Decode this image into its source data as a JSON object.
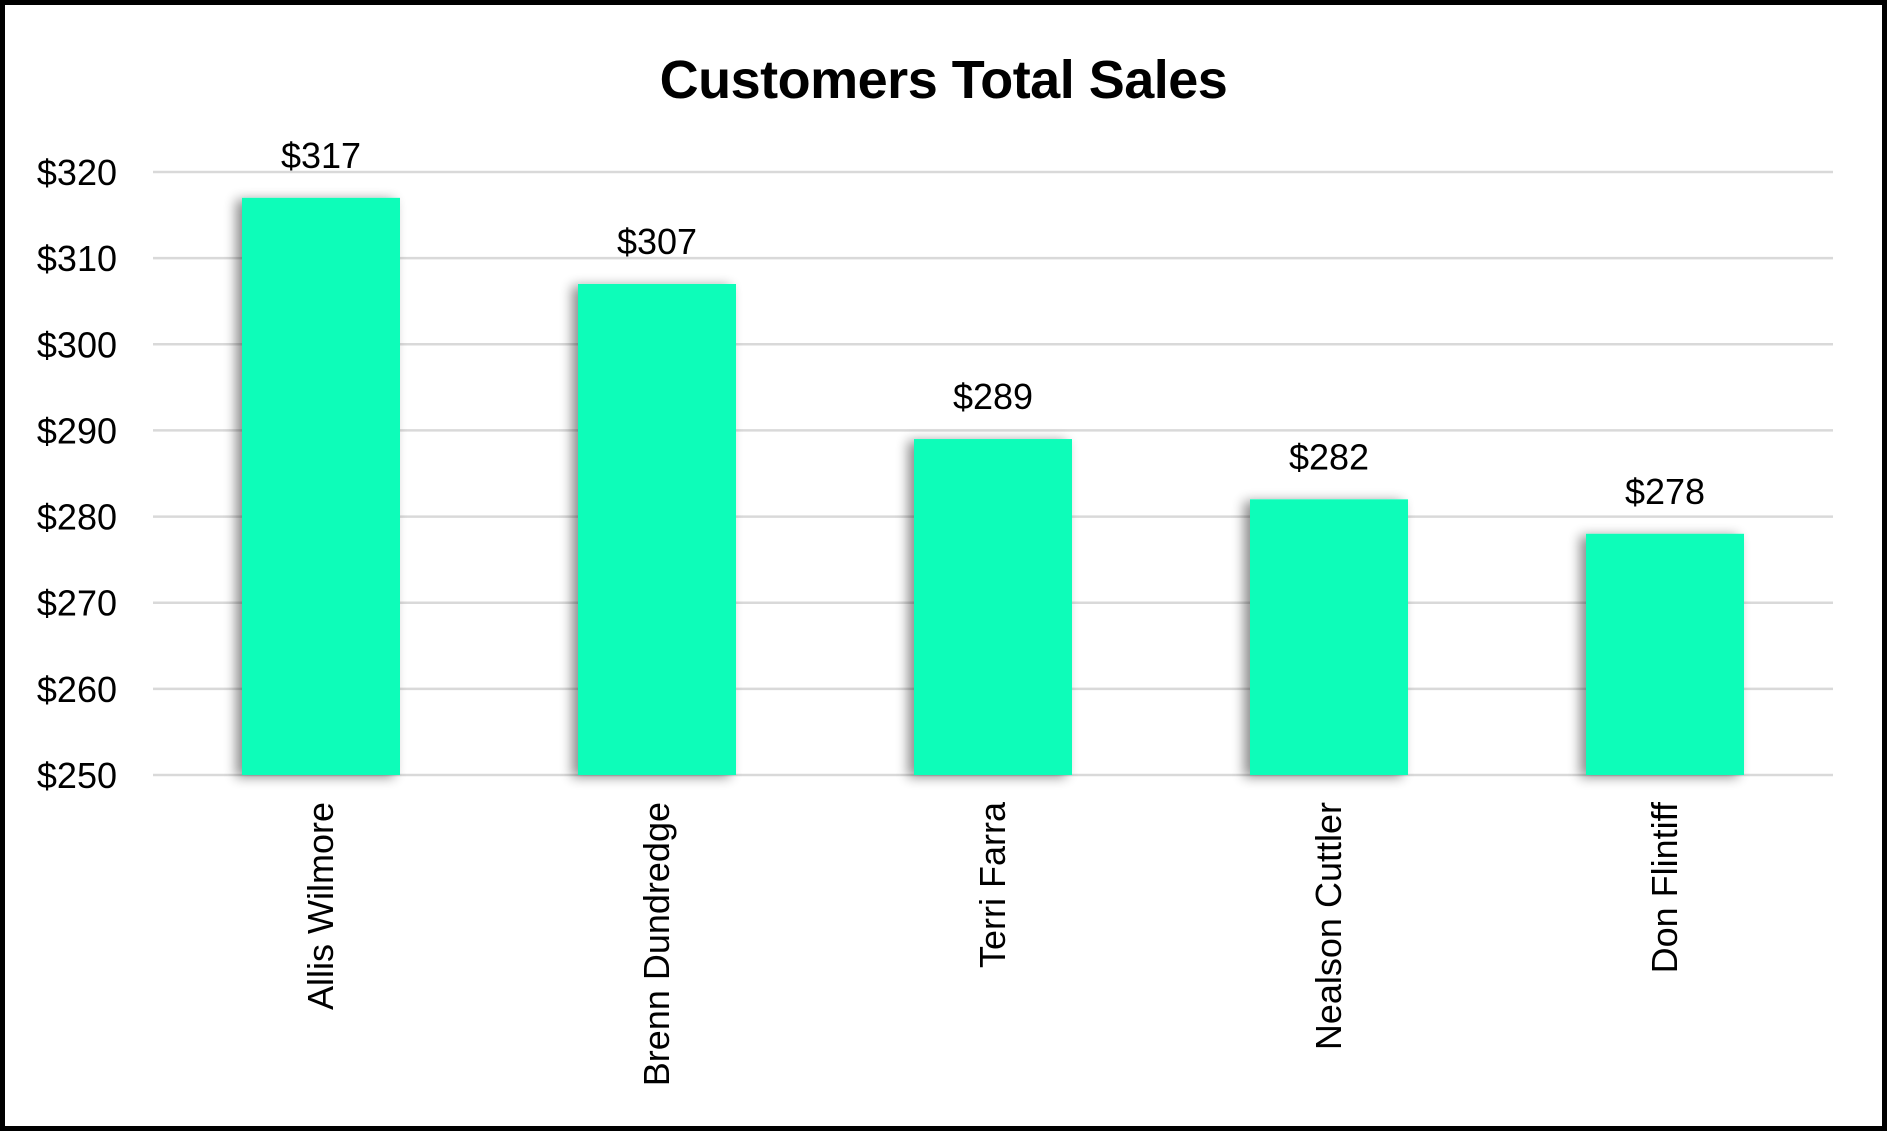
{
  "chart_data": {
    "type": "bar",
    "title": "Customers Total Sales",
    "xlabel": "",
    "ylabel": "",
    "categories": [
      "Allis Wilmore",
      "Brenn Dundredge",
      "Terri Farra",
      "Nealson Cuttler",
      "Don Flintiff"
    ],
    "values": [
      317,
      307,
      289,
      282,
      278
    ],
    "data_labels": [
      "$317",
      "$307",
      "$289",
      "$282",
      "$278"
    ],
    "ylim": [
      250,
      320
    ],
    "yticks": [
      250,
      260,
      270,
      280,
      290,
      300,
      310,
      320
    ],
    "ytick_labels": [
      "$250",
      "$260",
      "$270",
      "$280",
      "$290",
      "$300",
      "$310",
      "$320"
    ],
    "grid": true,
    "legend": "none",
    "bar_color": "#0dfdb9",
    "gridline_color": "#d9d9d9",
    "x_tick_rotation": "vertical"
  }
}
